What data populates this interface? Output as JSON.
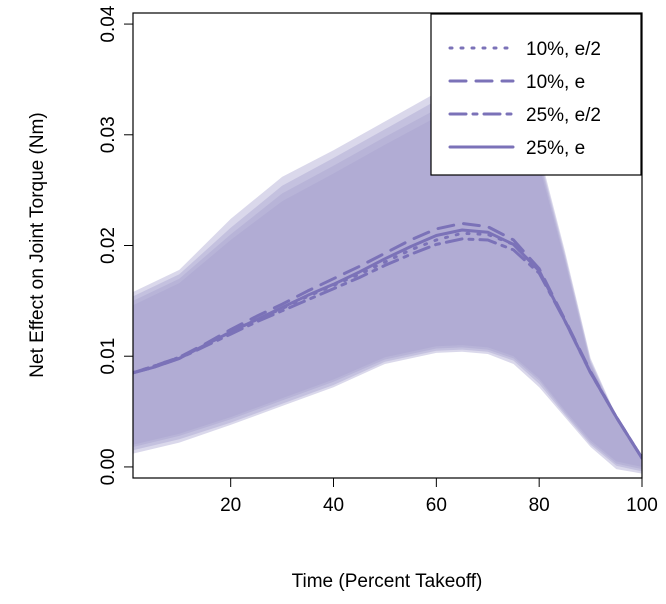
{
  "chart_data": {
    "type": "line",
    "title": "",
    "xlabel": "Time (Percent Takeoff)",
    "ylabel": "Net Effect on Joint Torque (Nm)",
    "xlim": [
      1,
      100
    ],
    "ylim": [
      -0.001,
      0.041
    ],
    "xticks": [
      20,
      40,
      60,
      80,
      100
    ],
    "yticks": [
      0.0,
      0.01,
      0.02,
      0.03,
      0.04
    ],
    "ytick_labels": [
      "0.00",
      "0.01",
      "0.02",
      "0.03",
      "0.04"
    ],
    "grid": false,
    "legend_position": "top-right",
    "series_color": "#7b72b8",
    "band_color": "#a8a1cf",
    "series": [
      {
        "name": "10%, e/2",
        "style": "dotted",
        "x": [
          1,
          5,
          10,
          15,
          20,
          25,
          30,
          35,
          40,
          45,
          50,
          55,
          60,
          65,
          70,
          75,
          80,
          85,
          90,
          95,
          100
        ],
        "y": [
          0.0085,
          0.0091,
          0.0099,
          0.011,
          0.0122,
          0.0133,
          0.0143,
          0.0154,
          0.0164,
          0.0174,
          0.0185,
          0.0196,
          0.0205,
          0.0211,
          0.021,
          0.0201,
          0.0177,
          0.0132,
          0.0085,
          0.0045,
          0.0008
        ]
      },
      {
        "name": "10%, e",
        "style": "dashed",
        "x": [
          1,
          5,
          10,
          15,
          20,
          25,
          30,
          35,
          40,
          45,
          50,
          55,
          60,
          65,
          70,
          75,
          80,
          85,
          90,
          95,
          100
        ],
        "y": [
          0.0085,
          0.0091,
          0.0099,
          0.0111,
          0.0124,
          0.0136,
          0.0147,
          0.0159,
          0.017,
          0.0181,
          0.0193,
          0.0205,
          0.0215,
          0.022,
          0.0217,
          0.0205,
          0.0179,
          0.0133,
          0.0086,
          0.0045,
          0.0008
        ]
      },
      {
        "name": "25%, e/2",
        "style": "dashdot",
        "x": [
          1,
          5,
          10,
          15,
          20,
          25,
          30,
          35,
          40,
          45,
          50,
          55,
          60,
          65,
          70,
          75,
          80,
          85,
          90,
          95,
          100
        ],
        "y": [
          0.0085,
          0.009,
          0.0098,
          0.0109,
          0.012,
          0.0131,
          0.0141,
          0.0151,
          0.0161,
          0.0171,
          0.0182,
          0.0192,
          0.0201,
          0.0206,
          0.0205,
          0.0196,
          0.0175,
          0.0132,
          0.0085,
          0.0045,
          0.0008
        ]
      },
      {
        "name": "25%, e",
        "style": "solid",
        "x": [
          1,
          5,
          10,
          15,
          20,
          25,
          30,
          35,
          40,
          45,
          50,
          55,
          60,
          65,
          70,
          75,
          80,
          85,
          90,
          95,
          100
        ],
        "y": [
          0.0085,
          0.009,
          0.0098,
          0.011,
          0.0122,
          0.0133,
          0.0144,
          0.0155,
          0.0165,
          0.0176,
          0.0188,
          0.0199,
          0.0209,
          0.0214,
          0.0212,
          0.0201,
          0.0177,
          0.0132,
          0.0085,
          0.0045,
          0.0008
        ]
      }
    ],
    "confidence_bands": [
      {
        "x": [
          1,
          10,
          20,
          30,
          40,
          50,
          60,
          65,
          70,
          75,
          80,
          85,
          90,
          95,
          100
        ],
        "upper": [
          0.0158,
          0.0178,
          0.0224,
          0.0262,
          0.0286,
          0.0312,
          0.0338,
          0.0348,
          0.0345,
          0.0328,
          0.0285,
          0.0195,
          0.0098,
          0.0046,
          0.0008
        ],
        "lower": [
          0.0012,
          0.0022,
          0.0038,
          0.0055,
          0.0072,
          0.0093,
          0.0103,
          0.0104,
          0.0102,
          0.0093,
          0.0072,
          0.0045,
          0.0018,
          -0.0002,
          -0.0006
        ]
      },
      {
        "x": [
          1,
          10,
          20,
          30,
          40,
          50,
          60,
          65,
          70,
          75,
          80,
          85,
          90,
          95,
          100
        ],
        "upper": [
          0.0154,
          0.0174,
          0.0216,
          0.0254,
          0.0279,
          0.0305,
          0.0331,
          0.0341,
          0.0339,
          0.0322,
          0.0281,
          0.0192,
          0.0096,
          0.0045,
          0.0008
        ],
        "lower": [
          0.0015,
          0.0025,
          0.004,
          0.0057,
          0.0074,
          0.0095,
          0.0105,
          0.0106,
          0.0104,
          0.0096,
          0.0075,
          0.0047,
          0.002,
          0.0001,
          -0.0004
        ]
      },
      {
        "x": [
          1,
          10,
          20,
          30,
          40,
          50,
          60,
          65,
          70,
          75,
          80,
          85,
          90,
          95,
          100
        ],
        "upper": [
          0.015,
          0.017,
          0.021,
          0.0247,
          0.0272,
          0.0298,
          0.0323,
          0.0333,
          0.0332,
          0.0316,
          0.0277,
          0.0189,
          0.0094,
          0.0044,
          0.0008
        ],
        "lower": [
          0.0018,
          0.0028,
          0.0043,
          0.006,
          0.0077,
          0.0097,
          0.0107,
          0.0108,
          0.0106,
          0.0098,
          0.0078,
          0.0049,
          0.0022,
          0.0003,
          -0.0002
        ]
      },
      {
        "x": [
          1,
          10,
          20,
          30,
          40,
          50,
          60,
          65,
          70,
          75,
          80,
          85,
          90,
          95,
          100
        ],
        "upper": [
          0.0146,
          0.0166,
          0.0205,
          0.024,
          0.0265,
          0.0291,
          0.0316,
          0.0326,
          0.0325,
          0.031,
          0.0272,
          0.0186,
          0.0092,
          0.0043,
          0.0008
        ],
        "lower": [
          0.002,
          0.003,
          0.0045,
          0.0062,
          0.0079,
          0.0099,
          0.0109,
          0.011,
          0.0108,
          0.01,
          0.008,
          0.0051,
          0.0024,
          0.0005,
          0.0
        ]
      }
    ]
  }
}
